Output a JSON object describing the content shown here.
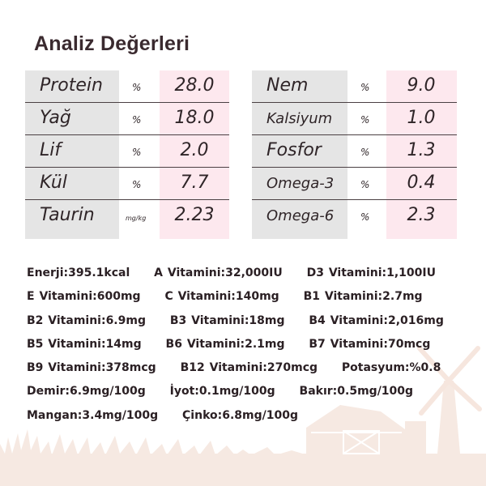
{
  "title": "Analiz Değerleri",
  "left_table": [
    {
      "label": "Protein",
      "unit": "%",
      "value": "28.0"
    },
    {
      "label": "Yağ",
      "unit": "%",
      "value": "18.0"
    },
    {
      "label": "Lif",
      "unit": "%",
      "value": "2.0"
    },
    {
      "label": "Kül",
      "unit": "%",
      "value": "7.7"
    },
    {
      "label": "Taurin",
      "unit": "mg/kg",
      "value": "2.23"
    }
  ],
  "right_table": [
    {
      "label": "Nem",
      "unit": "%",
      "value": "9.0"
    },
    {
      "label": "Kalsiyum",
      "unit": "%",
      "value": "1.0"
    },
    {
      "label": "Fosfor",
      "unit": "%",
      "value": "1.3"
    },
    {
      "label": "Omega-3",
      "unit": "%",
      "value": "0.4"
    },
    {
      "label": "Omega-6",
      "unit": "%",
      "value": "2.3"
    }
  ],
  "nutrients": [
    "Enerji:395.1kcal",
    "A Vitamini:32,000IU",
    "D3 Vitamini:1,100IU",
    "E Vitamini:600mg",
    "C Vitamini:140mg",
    "B1 Vitamini:2.7mg",
    "B2 Vitamini:6.9mg",
    "B3 Vitamini:18mg",
    "B4 Vitamini:2,016mg",
    "B5 Vitamini:14mg",
    "B6 Vitamini:2.1mg",
    "B7 Vitamini:70mcg",
    "B9 Vitamini:378mcg",
    "B12 Vitamini:270mcg",
    "Potasyum:%0.8",
    "Demir:6.9mg/100g",
    "İyot:0.1mg/100g",
    "Bakır:0.5mg/100g",
    "Mangan:3.4mg/100g",
    "Çinko:6.8mg/100g"
  ],
  "colors": {
    "label_column": "#e5e5e5",
    "value_column": "#fde8ee",
    "background_art": "#f6e6de"
  }
}
